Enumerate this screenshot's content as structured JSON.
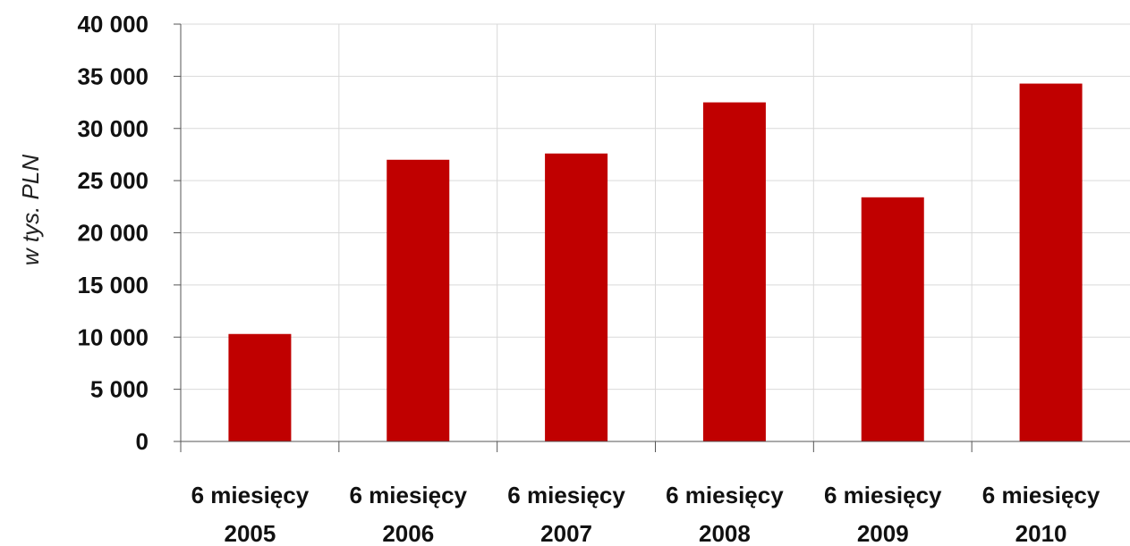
{
  "chart_data": {
    "type": "bar",
    "categories": [
      [
        "6 miesięcy",
        "2005"
      ],
      [
        "6 miesięcy",
        "2006"
      ],
      [
        "6 miesięcy",
        "2007"
      ],
      [
        "6 miesięcy",
        "2008"
      ],
      [
        "6 miesięcy",
        "2009"
      ],
      [
        "6 miesięcy",
        "2010"
      ]
    ],
    "values": [
      10300,
      27000,
      27600,
      32500,
      23400,
      34300
    ],
    "title": "",
    "xlabel": "",
    "ylabel": "w tys. PLN",
    "ylim": [
      0,
      40000
    ],
    "yticks": [
      "0",
      "5 000",
      "10 000",
      "15 000",
      "20 000",
      "25 000",
      "30 000",
      "35 000",
      "40 000"
    ],
    "ytick_values": [
      0,
      5000,
      10000,
      15000,
      20000,
      25000,
      30000,
      35000,
      40000
    ],
    "grid": true,
    "bar_color": "#c00000",
    "grid_color": "#d9d9d9",
    "axis_color": "#555555"
  }
}
